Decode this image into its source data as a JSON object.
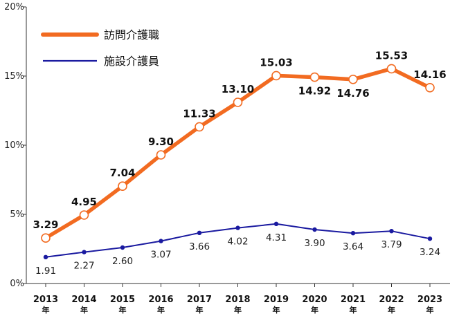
{
  "chart_data": {
    "type": "line",
    "title": "",
    "xlabel": "",
    "ylabel": "",
    "categories": [
      "2013",
      "2014",
      "2015",
      "2016",
      "2017",
      "2018",
      "2019",
      "2020",
      "2021",
      "2022",
      "2023"
    ],
    "category_suffix": "年",
    "ylim": [
      0,
      20
    ],
    "yticks": [
      0,
      5,
      10,
      15,
      20
    ],
    "ytick_labels": [
      "0%",
      "5%",
      "10%",
      "15%",
      "20%"
    ],
    "grid": false,
    "legend_position": "top-left",
    "series": [
      {
        "name": "訪問介護職",
        "color": "#f26b21",
        "marker": "open-circle",
        "values": [
          3.29,
          4.95,
          7.04,
          9.3,
          11.33,
          13.1,
          15.03,
          14.92,
          14.76,
          15.53,
          14.16
        ],
        "value_labels": [
          "3.29",
          "4.95",
          "7.04",
          "9.30",
          "11.33",
          "13.10",
          "15.03",
          "14.92",
          "14.76",
          "15.53",
          "14.16"
        ]
      },
      {
        "name": "施設介護員",
        "color": "#1a1aa0",
        "marker": "filled-dot",
        "values": [
          1.91,
          2.27,
          2.6,
          3.07,
          3.66,
          4.02,
          4.31,
          3.9,
          3.64,
          3.79,
          3.24
        ],
        "value_labels": [
          "1.91",
          "2.27",
          "2.60",
          "3.07",
          "3.66",
          "4.02",
          "4.31",
          "3.90",
          "3.64",
          "3.79",
          "3.24"
        ]
      }
    ]
  }
}
